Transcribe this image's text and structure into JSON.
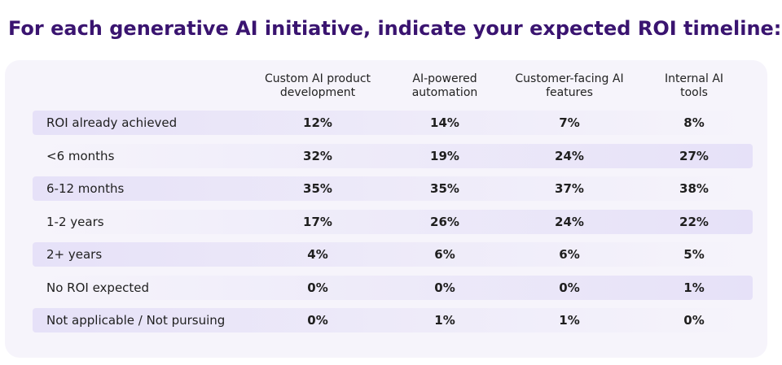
{
  "title": "For each generative AI initiative, indicate your expected ROI timeline:",
  "columns": [
    "Custom AI product development",
    "AI-powered automation",
    "Customer-facing AI features",
    "Internal AI tools"
  ],
  "column_lines": [
    [
      "Custom AI product",
      "development"
    ],
    [
      "AI-powered",
      "automation"
    ],
    [
      "Customer-facing AI",
      "features"
    ],
    [
      "Internal AI",
      "tools"
    ]
  ],
  "rows": [
    {
      "label": "ROI already achieved",
      "cells": [
        "12%",
        "14%",
        "7%",
        "8%"
      ]
    },
    {
      "label": "<6 months",
      "cells": [
        "32%",
        "19%",
        "24%",
        "27%"
      ]
    },
    {
      "label": "6-12 months",
      "cells": [
        "35%",
        "35%",
        "37%",
        "38%"
      ]
    },
    {
      "label": "1-2 years",
      "cells": [
        "17%",
        "26%",
        "24%",
        "22%"
      ]
    },
    {
      "label": "2+ years",
      "cells": [
        "4%",
        "6%",
        "6%",
        "5%"
      ]
    },
    {
      "label": "No ROI expected",
      "cells": [
        "0%",
        "0%",
        "0%",
        "1%"
      ]
    },
    {
      "label": "Not applicable / Not pursuing",
      "cells": [
        "0%",
        "1%",
        "1%",
        "0%"
      ]
    }
  ],
  "colors": {
    "title": "#3a1470",
    "panel": "#f6f4fb",
    "stripe": "#e6e1f8"
  },
  "chart_data": {
    "type": "table",
    "title": "For each generative AI initiative, indicate your expected ROI timeline:",
    "categories": [
      "ROI already achieved",
      "<6 months",
      "6-12 months",
      "1-2 years",
      "2+ years",
      "No ROI expected",
      "Not applicable / Not pursuing"
    ],
    "unit": "%",
    "series": [
      {
        "name": "Custom AI product development",
        "values": [
          12,
          32,
          35,
          17,
          4,
          0,
          0
        ]
      },
      {
        "name": "AI-powered automation",
        "values": [
          14,
          19,
          35,
          26,
          6,
          0,
          1
        ]
      },
      {
        "name": "Customer-facing AI features",
        "values": [
          7,
          24,
          37,
          24,
          6,
          0,
          1
        ]
      },
      {
        "name": "Internal AI tools",
        "values": [
          8,
          27,
          38,
          22,
          5,
          1,
          0
        ]
      }
    ]
  }
}
